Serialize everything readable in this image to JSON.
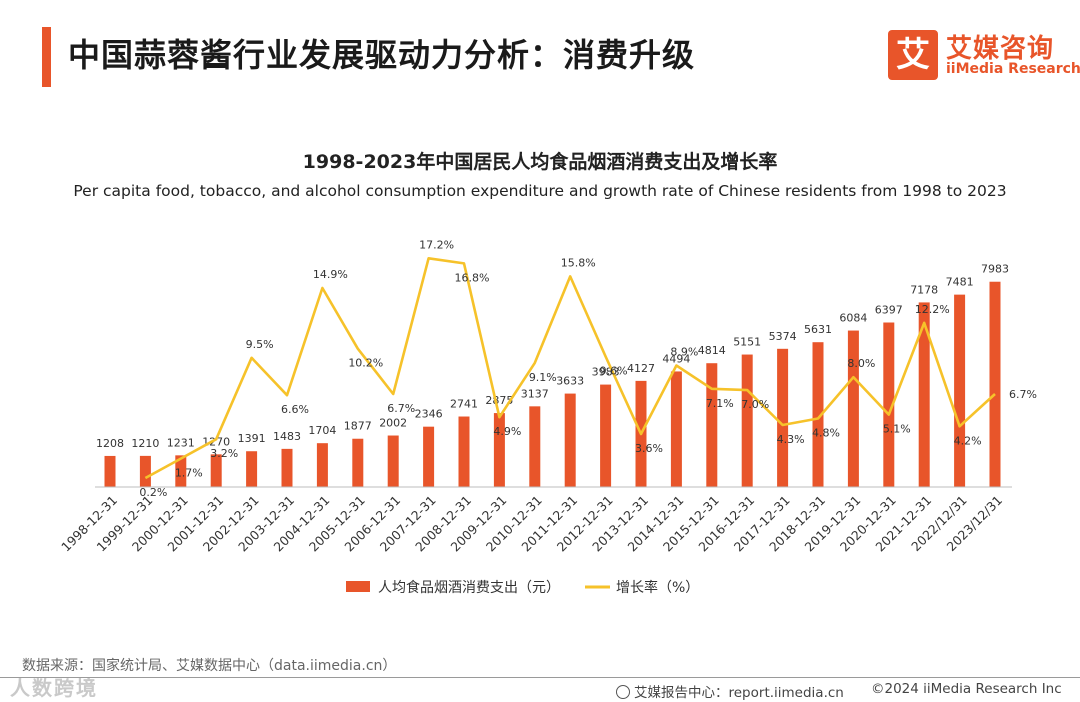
{
  "header": {
    "title": "中国蒜蓉酱行业发展驱动力分析：消费升级"
  },
  "logo": {
    "mark": "艾",
    "cn": "艾媒咨询",
    "en": "iiMedia Research"
  },
  "chart_data": {
    "type": "bar",
    "title": "1998-2023年中国居民人均食品烟酒消费支出及增长率",
    "subtitle": "Per capita food, tobacco, and alcohol consumption expenditure and growth rate of Chinese residents from 1998 to 2023",
    "categories": [
      "1998-12-31",
      "1999-12-31",
      "2000-12-31",
      "2001-12-31",
      "2002-12-31",
      "2003-12-31",
      "2004-12-31",
      "2005-12-31",
      "2006-12-31",
      "2007-12-31",
      "2008-12-31",
      "2009-12-31",
      "2010-12-31",
      "2011-12-31",
      "2012-12-31",
      "2013-12-31",
      "2014-12-31",
      "2015-12-31",
      "2016-12-31",
      "2017-12-31",
      "2018-12-31",
      "2019-12-31",
      "2020-12-31",
      "2021-12-31",
      "2022/12/31",
      "2023/12/31"
    ],
    "series": [
      {
        "name": "人均食品烟酒消费支出（元）",
        "type": "bar",
        "color": "#e8552a",
        "values": [
          1208,
          1210,
          1231,
          1270,
          1391,
          1483,
          1704,
          1877,
          2002,
          2346,
          2741,
          2875,
          3137,
          3633,
          3983,
          4127,
          4494,
          4814,
          5151,
          5374,
          5631,
          6084,
          6397,
          7178,
          7481,
          7983
        ],
        "labels": [
          "1208",
          "1210",
          "1231",
          "1270",
          "1391",
          "1483",
          "1704",
          "1877",
          "2002",
          "2346",
          "2741",
          "2875",
          "3137",
          "3633",
          "3983",
          "4127",
          "4494",
          "4814",
          "5151",
          "5374",
          "5631",
          "6084",
          "6397",
          "7178",
          "7481",
          "7983"
        ]
      },
      {
        "name": "增长率（%）",
        "type": "line",
        "color": "#f6c22a",
        "values": [
          null,
          0.2,
          1.7,
          3.2,
          9.5,
          6.6,
          14.9,
          10.2,
          6.7,
          17.2,
          16.8,
          4.9,
          9.1,
          15.8,
          9.6,
          3.6,
          8.9,
          7.1,
          7.0,
          4.3,
          4.8,
          8.0,
          5.1,
          12.2,
          4.2,
          6.7
        ],
        "labels": [
          "",
          "0.2%",
          "1.7%",
          "3.2%",
          "9.5%",
          "6.6%",
          "14.9%",
          "10.2%",
          "6.7%",
          "17.2%",
          "16.8%",
          "4.9%",
          "9.1%",
          "15.8%",
          "9.6%",
          "3.6%",
          "8.9%",
          "7.1%",
          "7.0%",
          "4.3%",
          "4.8%",
          "8.0%",
          "5.1%",
          "12.2%",
          "4.2%",
          "6.7%"
        ]
      }
    ],
    "ylim_bar": [
      0,
      9800
    ],
    "ylim_line": [
      -0.5,
      19
    ],
    "legend_position": "bottom-center"
  },
  "footer": {
    "source": "数据来源：国家统计局、艾媒数据中心（data.iimedia.cn）",
    "report": "艾媒报告中心：report.iimedia.cn",
    "copyright": "©2024  iiMedia Research  Inc",
    "watermark": "人数跨境"
  }
}
